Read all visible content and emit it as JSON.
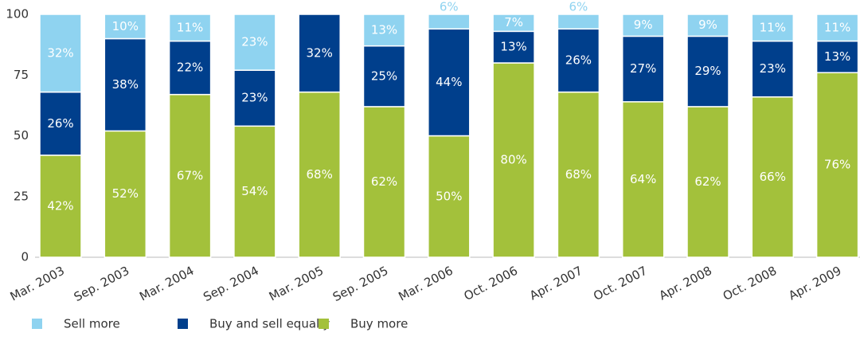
{
  "chart_data": {
    "type": "stacked_bar",
    "categories": [
      "Mar. 2003",
      "Sep. 2003",
      "Mar. 2004",
      "Sep. 2004",
      "Mar. 2005",
      "Sep. 2005",
      "Mar. 2006",
      "Oct. 2006",
      "Apr. 2007",
      "Oct. 2007",
      "Apr. 2008",
      "Oct. 2008",
      "Apr. 2009"
    ],
    "series": [
      {
        "name": "Sell more",
        "color": "#8fd3f0",
        "values": [
          32,
          10,
          11,
          23,
          null,
          13,
          6,
          7,
          6,
          9,
          9,
          11,
          11
        ],
        "value_labels": [
          "32%",
          "10%",
          "11%",
          "23%",
          null,
          "13%",
          "6%",
          "7%",
          "6%",
          "9%",
          "9%",
          "11%",
          "11%"
        ]
      },
      {
        "name": "Buy and sell equally",
        "color": "#003f8c",
        "values": [
          26,
          38,
          22,
          23,
          32,
          25,
          44,
          13,
          26,
          27,
          29,
          23,
          13
        ],
        "value_labels": [
          "26%",
          "38%",
          "22%",
          "23%",
          "32%",
          "25%",
          "44%",
          "13%",
          "26%",
          "27%",
          "29%",
          "23%",
          "13%"
        ]
      },
      {
        "name": "Buy more",
        "color": "#a3c13b",
        "values": [
          42,
          52,
          67,
          54,
          68,
          62,
          50,
          80,
          68,
          64,
          62,
          66,
          76
        ],
        "value_labels": [
          "42%",
          "52%",
          "67%",
          "54%",
          "68%",
          "62%",
          "50%",
          "80%",
          "68%",
          "64%",
          "62%",
          "66%",
          "76%"
        ]
      }
    ],
    "ylim": [
      0,
      100
    ],
    "yticks": [
      0,
      25,
      50,
      75,
      100
    ]
  }
}
